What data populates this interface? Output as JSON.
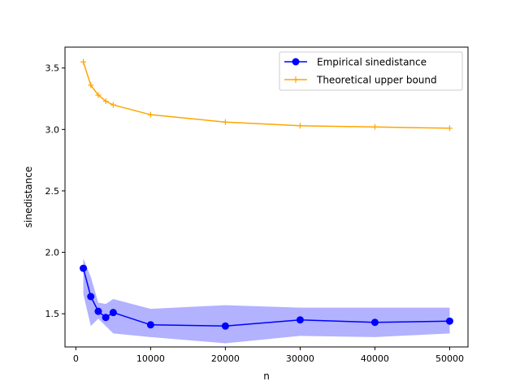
{
  "chart_data": {
    "type": "line",
    "xlabel": "n",
    "ylabel": "sinedistance",
    "xlim": [
      -1450,
      52450
    ],
    "ylim": [
      1.23,
      3.67
    ],
    "x_ticks": [
      0,
      10000,
      20000,
      30000,
      40000,
      50000
    ],
    "x_tick_labels": [
      "0",
      "10000",
      "20000",
      "30000",
      "40000",
      "50000"
    ],
    "y_ticks": [
      1.5,
      2.0,
      2.5,
      3.0,
      3.5
    ],
    "y_tick_labels": [
      "1.5",
      "2.0",
      "2.5",
      "3.0",
      "3.5"
    ],
    "grid": false,
    "legend_position": "upper right",
    "x": [
      1000,
      2000,
      3000,
      4000,
      5000,
      10000,
      20000,
      30000,
      40000,
      50000
    ],
    "series": [
      {
        "name": "Empirical sinedistance",
        "color": "#0000ff",
        "marker": "circle",
        "values": [
          1.87,
          1.64,
          1.52,
          1.47,
          1.51,
          1.41,
          1.4,
          1.45,
          1.43,
          1.44
        ],
        "band_lower": [
          1.66,
          1.4,
          1.46,
          1.4,
          1.34,
          1.31,
          1.26,
          1.32,
          1.31,
          1.34
        ],
        "band_upper": [
          1.95,
          1.8,
          1.59,
          1.58,
          1.62,
          1.54,
          1.57,
          1.55,
          1.55,
          1.55
        ],
        "band_color": "#0000ff"
      },
      {
        "name": "Theoretical upper bound",
        "color": "#ffa500",
        "marker": "plus",
        "values": [
          3.55,
          3.36,
          3.28,
          3.23,
          3.2,
          3.12,
          3.06,
          3.03,
          3.02,
          3.01
        ]
      }
    ]
  }
}
